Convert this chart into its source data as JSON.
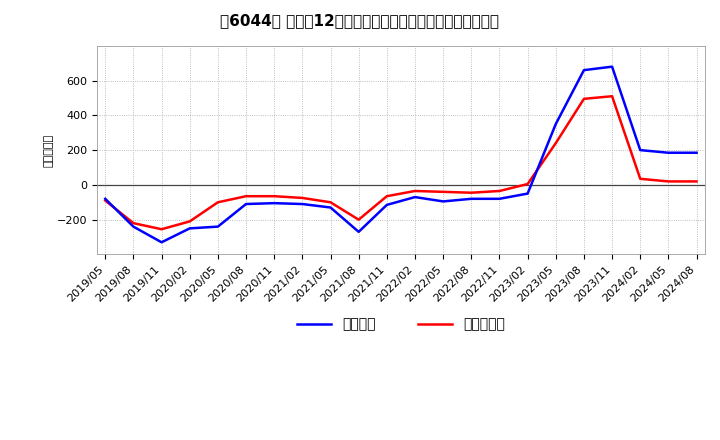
{
  "title": "［6044］ 利益だ12か月移動合計の対前年同期増減額の推移",
  "ylabel": "（百万円）",
  "x_labels": [
    "2019/05",
    "2019/08",
    "2019/11",
    "2020/02",
    "2020/05",
    "2020/08",
    "2020/11",
    "2021/02",
    "2021/05",
    "2021/08",
    "2021/11",
    "2022/02",
    "2022/05",
    "2022/08",
    "2022/11",
    "2023/02",
    "2023/05",
    "2023/08",
    "2023/11",
    "2024/02",
    "2024/05",
    "2024/08"
  ],
  "operating_profit": [
    -80,
    -240,
    -330,
    -250,
    -240,
    -110,
    -105,
    -110,
    -130,
    -270,
    -115,
    -70,
    -95,
    -80,
    -80,
    -50,
    350,
    660,
    680,
    200,
    185,
    185
  ],
  "net_profit": [
    -90,
    -220,
    -255,
    -210,
    -100,
    -65,
    -65,
    -75,
    -100,
    -200,
    -65,
    -35,
    -40,
    -45,
    -35,
    5,
    240,
    495,
    510,
    35,
    20,
    20
  ],
  "ylim": [
    -400,
    800
  ],
  "yticks": [
    -200,
    0,
    200,
    400,
    600
  ],
  "line_color_op": "#0000ff",
  "line_color_np": "#ff0000",
  "legend_op": "経常利益",
  "legend_np": "当期純利益",
  "bg_color": "#ffffff",
  "plot_bg_color": "#ffffff",
  "grid_color": "#aaaaaa",
  "zero_line_color": "#444444",
  "title_fontsize": 11,
  "axis_fontsize": 8,
  "legend_fontsize": 10
}
